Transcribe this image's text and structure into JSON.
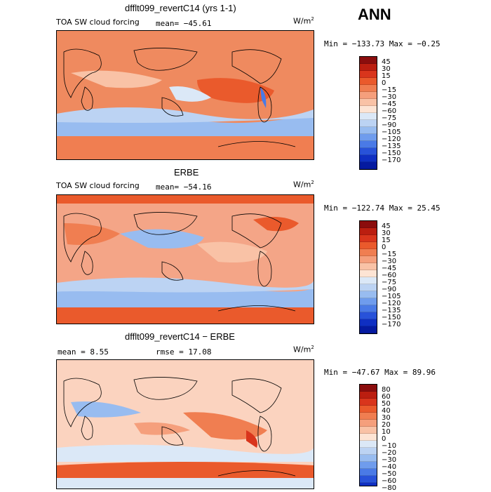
{
  "header": {
    "season": "ANN"
  },
  "panels": [
    {
      "title": "dfflt099_revertC14 (yrs 1-1)",
      "variable": "TOA SW cloud forcing",
      "stat_text": "mean=  −45.61",
      "units_text": "W/m",
      "units_exp": "2",
      "minmax_text": "Min = −133.73 Max =  −0.25",
      "colorbar": {
        "labels": [
          "45",
          "30",
          "15",
          "0",
          "−15",
          "−30",
          "−45",
          "−60",
          "−75",
          "−90",
          "−105",
          "−120",
          "−135",
          "−150",
          "−170"
        ],
        "colors": [
          "#8b0d0d",
          "#bb1e10",
          "#d9351c",
          "#ea5a2c",
          "#f07e51",
          "#f59f7c",
          "#f9c2a6",
          "#fde4d4",
          "#dbe8f7",
          "#bcd3f3",
          "#98bcf0",
          "#6f9ced",
          "#4a7ae6",
          "#2852d9",
          "#0f2fc2",
          "#051aa0"
        ]
      },
      "map_mean_color": "#ef8a5f"
    },
    {
      "title": "ERBE",
      "variable": "TOA SW cloud forcing",
      "stat_text": "mean=  −54.16",
      "units_text": "W/m",
      "units_exp": "2",
      "minmax_text": "Min = −122.74 Max =  25.45",
      "colorbar": {
        "labels": [
          "45",
          "30",
          "15",
          "0",
          "−15",
          "−30",
          "−45",
          "−60",
          "−75",
          "−90",
          "−105",
          "−120",
          "−135",
          "−150",
          "−170"
        ],
        "colors": [
          "#8b0d0d",
          "#bb1e10",
          "#d9351c",
          "#ea5a2c",
          "#f07e51",
          "#f59f7c",
          "#f9c2a6",
          "#fde4d4",
          "#dbe8f7",
          "#bcd3f3",
          "#98bcf0",
          "#6f9ced",
          "#4a7ae6",
          "#2852d9",
          "#0f2fc2",
          "#051aa0"
        ]
      },
      "map_mean_color": "#f4a587"
    },
    {
      "title": "dfflt099_revertC14 − ERBE",
      "variable": "",
      "stat_text": "mean =     8.55",
      "rmse_text": "rmse =   17.08",
      "units_text": "W/m",
      "units_exp": "2",
      "minmax_text": "Min = −47.67 Max =  89.96",
      "colorbar": {
        "labels": [
          "80",
          "60",
          "50",
          "40",
          "30",
          "20",
          "10",
          "0",
          "−10",
          "−20",
          "−30",
          "−40",
          "−50",
          "−60",
          "−80"
        ],
        "colors": [
          "#8b0d0d",
          "#bb1e10",
          "#d9351c",
          "#ea5a2c",
          "#f07e51",
          "#f59f7c",
          "#f9c2a6",
          "#fde4d4",
          "#dbe8f7",
          "#bcd3f3",
          "#98bcf0",
          "#6f9ced",
          "#4a7ae6",
          "#2852d9",
          "#0f2fc2",
          "#051aa0"
        ]
      },
      "map_mean_color": "#fbd3bf"
    }
  ]
}
